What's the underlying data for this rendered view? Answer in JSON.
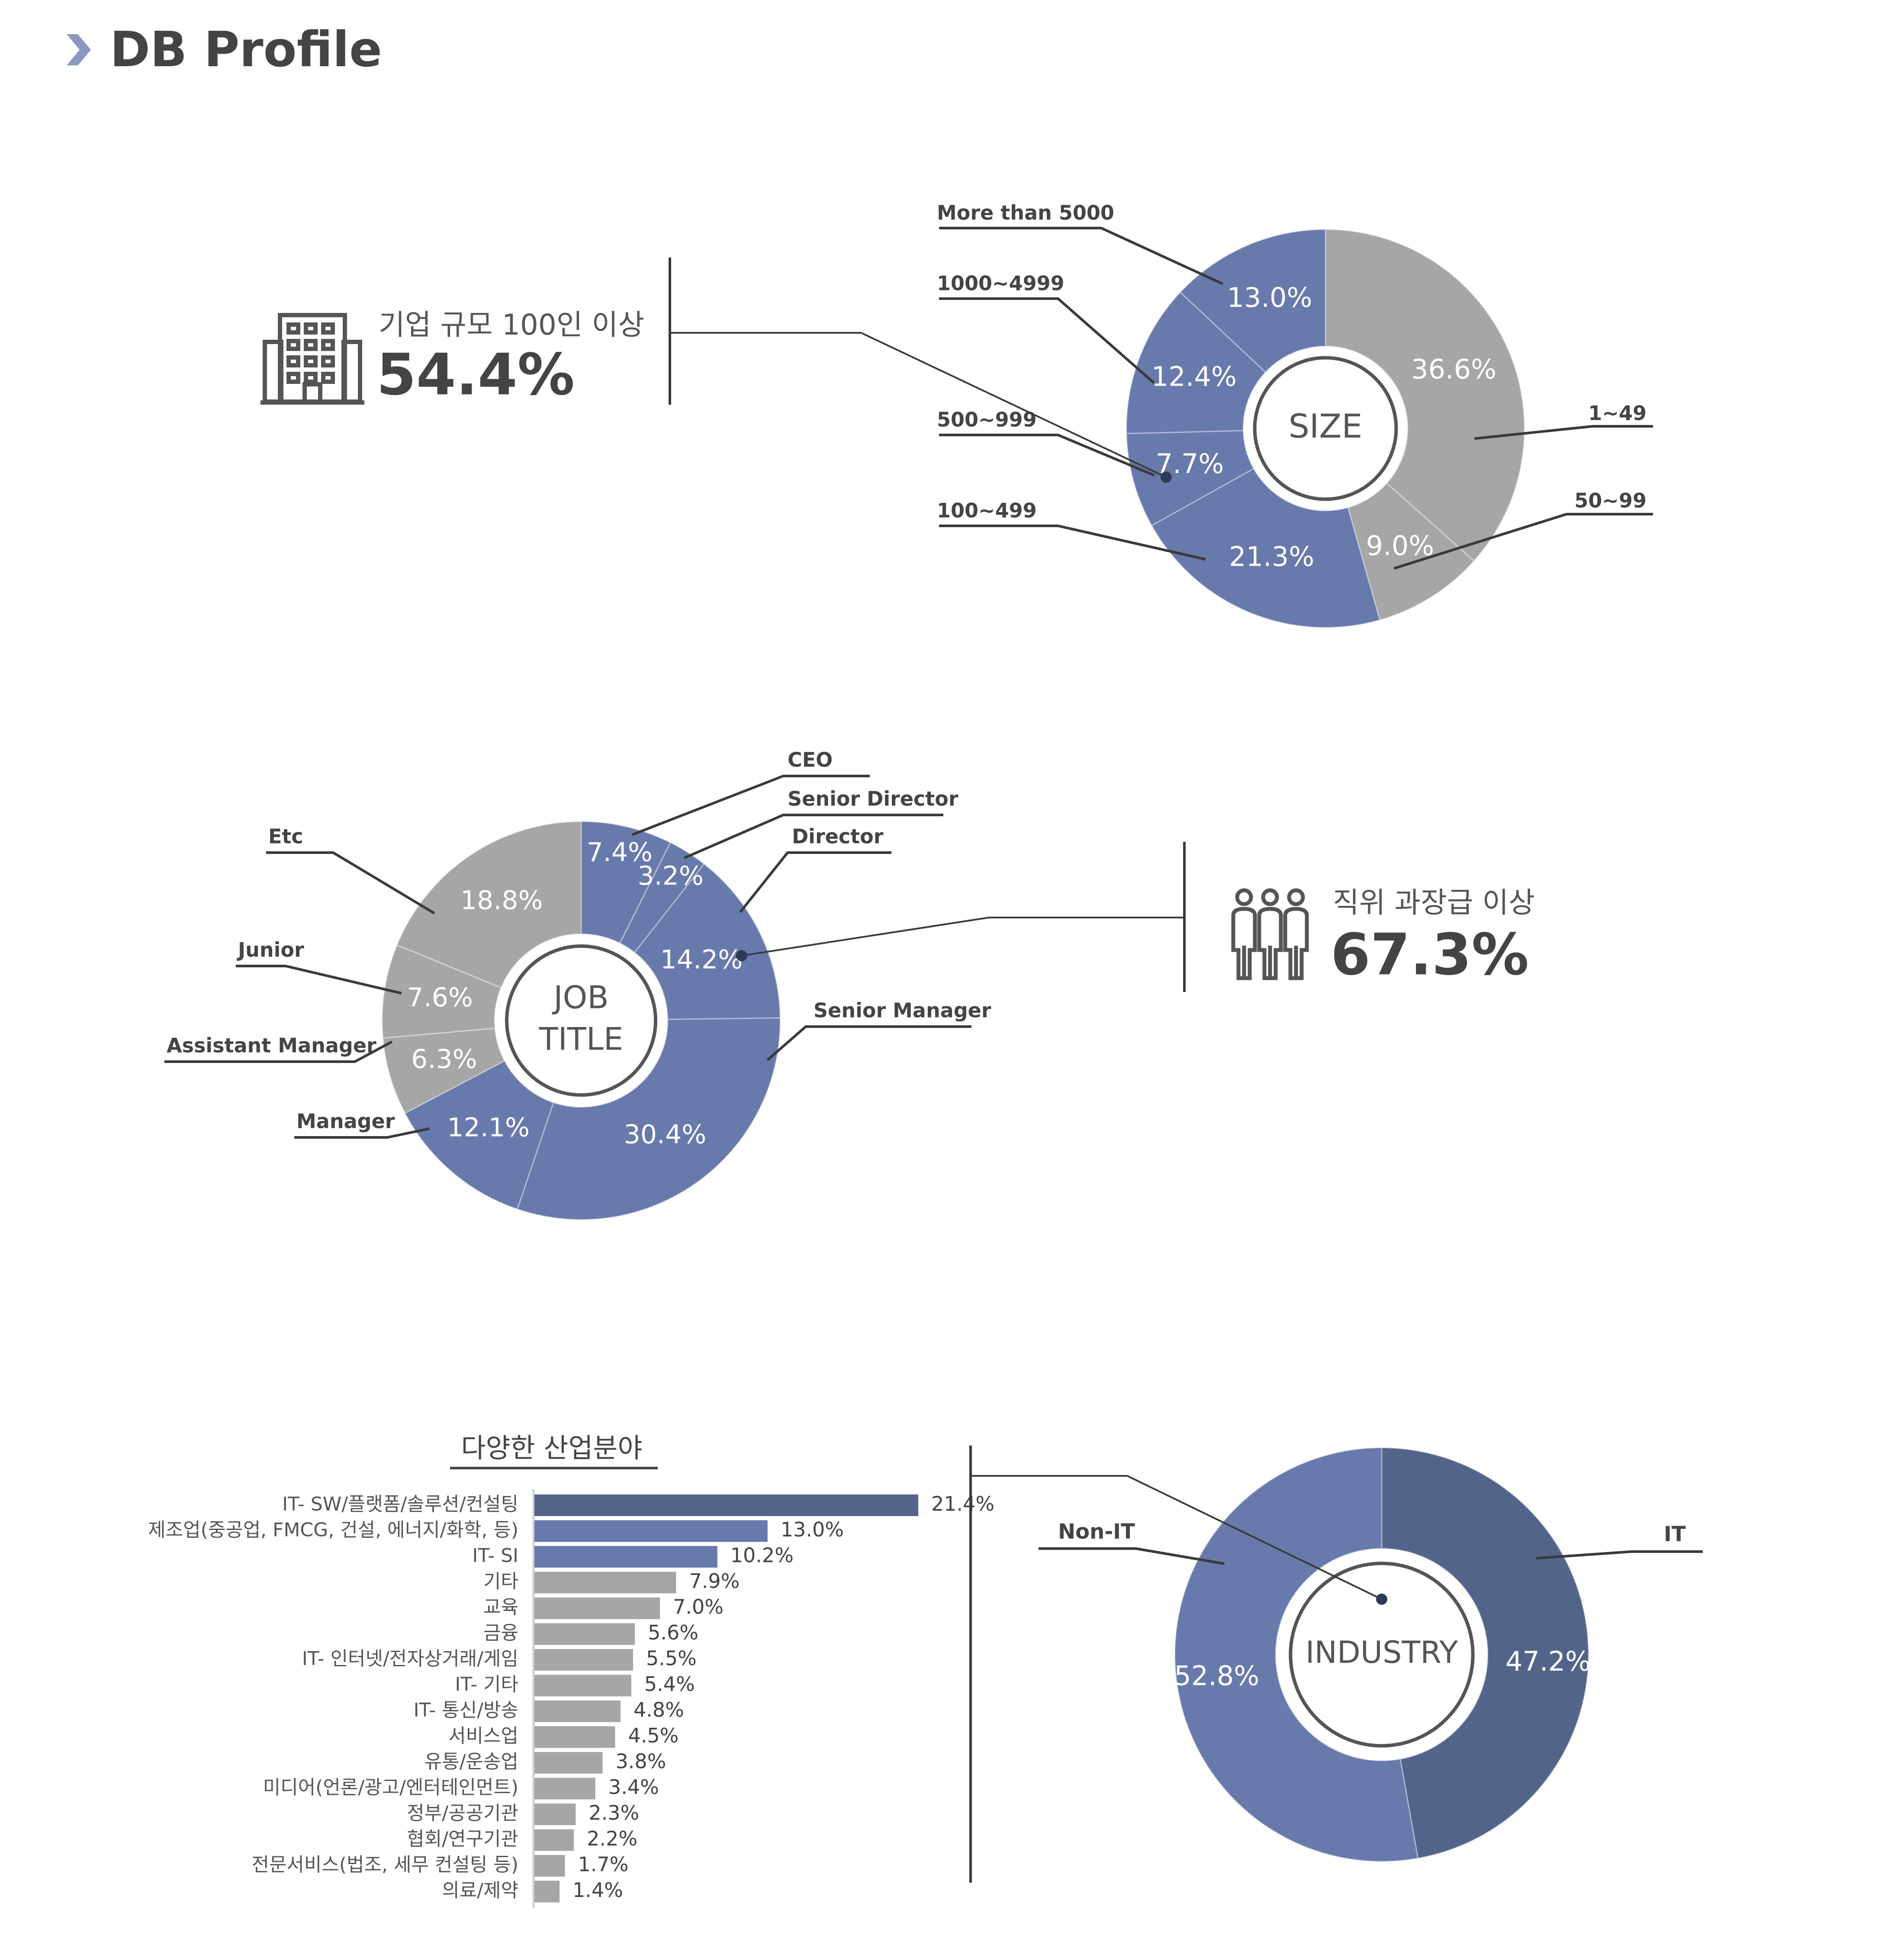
{
  "header": {
    "title": "DB Profile"
  },
  "colors": {
    "blue": "#6879ab",
    "dark_blue": "#53648a",
    "gray": "#a6a6a6",
    "text": "#444444",
    "line": "#3a3a3a"
  },
  "stats": {
    "size": {
      "label": "기업 규모 100인 이상",
      "value": "54.4%",
      "icon": "building-icon"
    },
    "job": {
      "label": "직위 과장급 이상",
      "value": "67.3%",
      "icon": "people-icon"
    }
  },
  "bar_title": "다양한 산업분야",
  "chart_data": [
    {
      "type": "pie",
      "center_label": "SIZE",
      "categories": [
        "1~49",
        "50~99",
        "100~499",
        "500~999",
        "1000~4999",
        "More than 5000"
      ],
      "values": [
        36.6,
        9.0,
        21.3,
        7.7,
        12.4,
        13.0
      ],
      "value_labels": [
        "36.6%",
        "9.0%",
        "21.3%",
        "7.7%",
        "12.4%",
        "13.0%"
      ],
      "slice_colors": [
        "#a6a6a6",
        "#a6a6a6",
        "#6879ab",
        "#6879ab",
        "#6879ab",
        "#6879ab"
      ]
    },
    {
      "type": "pie",
      "center_label": [
        "JOB",
        "TITLE"
      ],
      "categories": [
        "CEO",
        "Senior Director",
        "Director",
        "Senior Manager",
        "Manager",
        "Assistant  Manager",
        "Junior",
        "Etc"
      ],
      "values": [
        7.4,
        3.2,
        14.2,
        30.4,
        12.1,
        6.3,
        7.6,
        18.8
      ],
      "value_labels": [
        "7.4%",
        "3.2%",
        "14.2%",
        "30.4%",
        "12.1%",
        "6.3%",
        "7.6%",
        "18.8%"
      ],
      "slice_colors": [
        "#6879ab",
        "#6879ab",
        "#6879ab",
        "#6879ab",
        "#6879ab",
        "#a6a6a6",
        "#a6a6a6",
        "#a6a6a6"
      ]
    },
    {
      "type": "bar",
      "orientation": "horizontal",
      "title": "다양한 산업분야",
      "categories": [
        "IT- SW/플랫폼/솔루션/컨설팅",
        "제조업(중공업, FMCG, 건설, 에너지/화학, 등)",
        "IT- SI",
        "기타",
        "교육",
        "금융",
        "IT- 인터넷/전자상거래/게임",
        "IT- 기타",
        "IT- 통신/방송",
        "서비스업",
        "유통/운송업",
        "미디어(언론/광고/엔터테인먼트)",
        "정부/공공기관",
        "협회/연구기관",
        "전문서비스(법조, 세무 컨설팅 등)",
        "의료/제약"
      ],
      "values": [
        21.4,
        13.0,
        10.2,
        7.9,
        7.0,
        5.6,
        5.5,
        5.4,
        4.8,
        4.5,
        3.8,
        3.4,
        2.3,
        2.2,
        1.7,
        1.4
      ],
      "value_labels": [
        "21.4%",
        "13.0%",
        "10.2%",
        "7.9%",
        "7.0%",
        "5.6%",
        "5.5%",
        "5.4%",
        "4.8%",
        "4.5%",
        "3.8%",
        "3.4%",
        "2.3%",
        "2.2%",
        "1.7%",
        "1.4%"
      ],
      "bar_colors": [
        "#53648a",
        "#6879ab",
        "#6879ab",
        "#a6a6a6",
        "#a6a6a6",
        "#a6a6a6",
        "#a6a6a6",
        "#a6a6a6",
        "#a6a6a6",
        "#a6a6a6",
        "#a6a6a6",
        "#a6a6a6",
        "#a6a6a6",
        "#a6a6a6",
        "#a6a6a6",
        "#a6a6a6"
      ]
    },
    {
      "type": "pie",
      "center_label": "INDUSTRY",
      "categories": [
        "IT",
        "Non-IT"
      ],
      "values": [
        47.2,
        52.8
      ],
      "value_labels": [
        "47.2%",
        "52.8%"
      ],
      "slice_colors": [
        "#53648a",
        "#6879ab"
      ]
    }
  ]
}
